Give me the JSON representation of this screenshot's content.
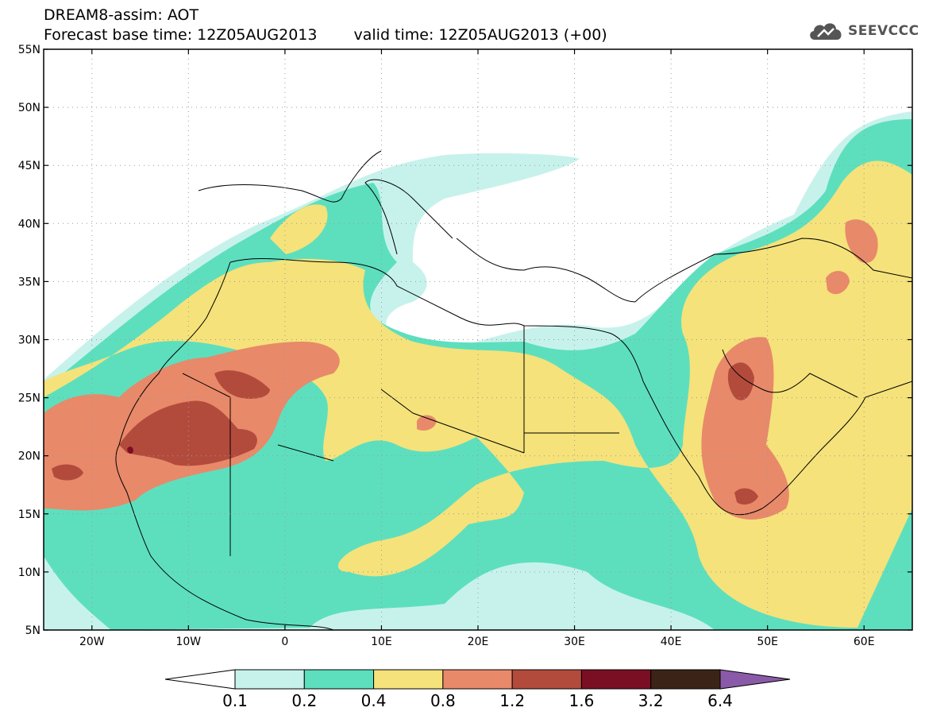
{
  "header": {
    "title": "DREAM8-assim: AOT",
    "base_time": "Forecast base time: 12Z05AUG2013",
    "valid_time": "valid time: 12Z05AUG2013 (+00)"
  },
  "logo": {
    "text": "SEEVCCC",
    "icon": "cloud-icon"
  },
  "map": {
    "projection": "lat-lon",
    "lon_range": [
      -25,
      65
    ],
    "lat_range": [
      5,
      55
    ],
    "lat_ticks": [
      {
        "value": 55,
        "label": "55N"
      },
      {
        "value": 50,
        "label": "50N"
      },
      {
        "value": 45,
        "label": "45N"
      },
      {
        "value": 40,
        "label": "40N"
      },
      {
        "value": 35,
        "label": "35N"
      },
      {
        "value": 30,
        "label": "30N"
      },
      {
        "value": 25,
        "label": "25N"
      },
      {
        "value": 20,
        "label": "20N"
      },
      {
        "value": 15,
        "label": "15N"
      },
      {
        "value": 10,
        "label": "10N"
      },
      {
        "value": 5,
        "label": "5N"
      }
    ],
    "lon_ticks": [
      {
        "value": -20,
        "label": "20W"
      },
      {
        "value": -10,
        "label": "10W"
      },
      {
        "value": 0,
        "label": "0"
      },
      {
        "value": 10,
        "label": "10E"
      },
      {
        "value": 20,
        "label": "20E"
      },
      {
        "value": 30,
        "label": "30E"
      },
      {
        "value": 40,
        "label": "40E"
      },
      {
        "value": 50,
        "label": "50E"
      },
      {
        "value": 60,
        "label": "60E"
      }
    ],
    "grid": true
  },
  "colorbar": {
    "colors": [
      "#ffffff",
      "#c7f2ec",
      "#5ddfbe",
      "#f5e27a",
      "#e8896a",
      "#b34b3d",
      "#7a0f24",
      "#3b2417",
      "#8a5aa8"
    ],
    "labels": [
      "0.1",
      "0.2",
      "0.4",
      "0.8",
      "1.2",
      "1.6",
      "3.2",
      "6.4"
    ]
  }
}
